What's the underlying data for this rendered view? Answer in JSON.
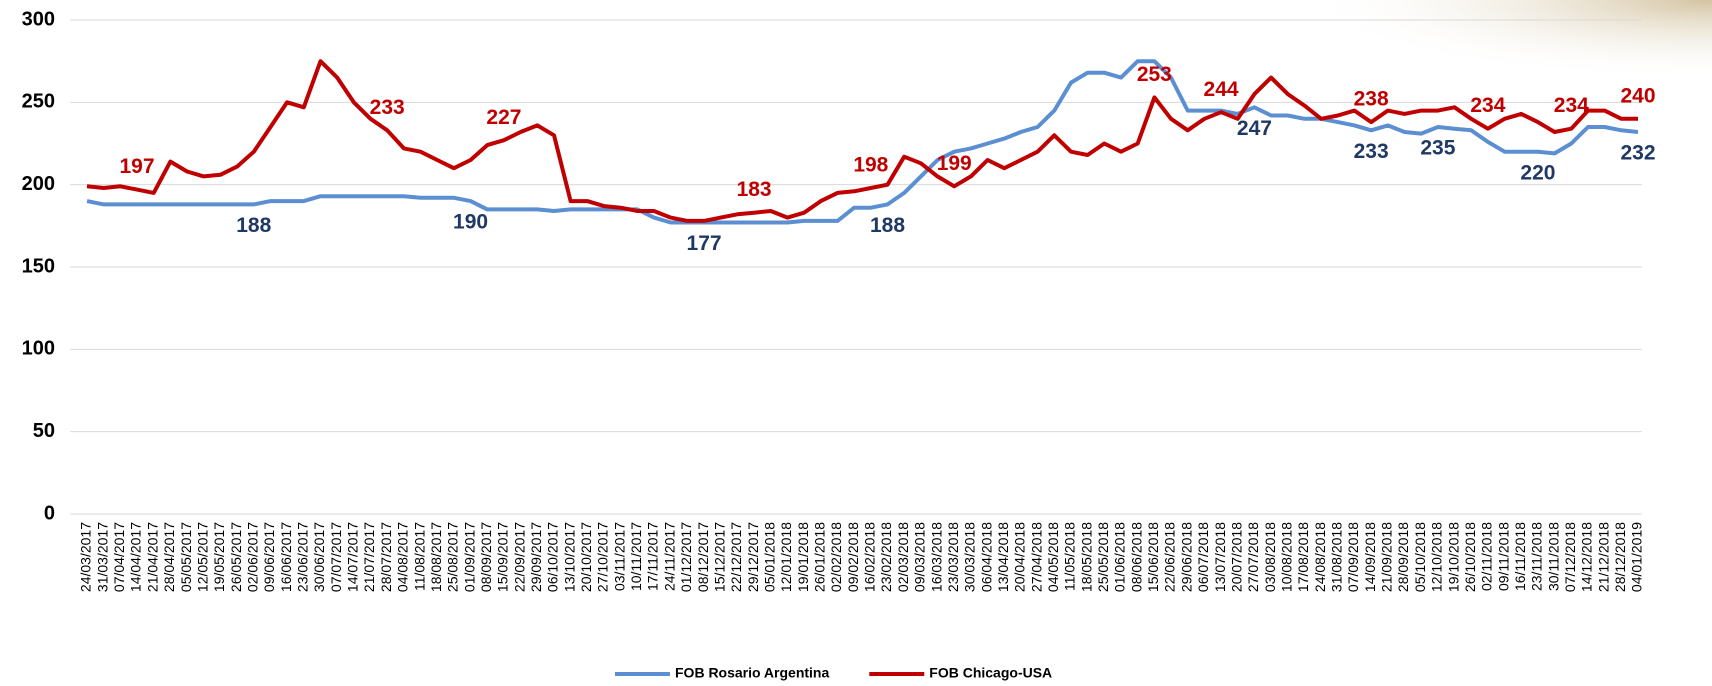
{
  "chart_data": {
    "type": "line",
    "x": [
      "24/03/2017",
      "31/03/2017",
      "07/04/2017",
      "14/04/2017",
      "21/04/2017",
      "28/04/2017",
      "05/05/2017",
      "12/05/2017",
      "19/05/2017",
      "26/05/2017",
      "02/06/2017",
      "09/06/2017",
      "16/06/2017",
      "23/06/2017",
      "30/06/2017",
      "07/07/2017",
      "14/07/2017",
      "21/07/2017",
      "28/07/2017",
      "04/08/2017",
      "11/08/2017",
      "18/08/2017",
      "25/08/2017",
      "01/09/2017",
      "08/09/2017",
      "15/09/2017",
      "22/09/2017",
      "29/09/2017",
      "06/10/2017",
      "13/10/2017",
      "20/10/2017",
      "27/10/2017",
      "03/11/2017",
      "10/11/2017",
      "17/11/2017",
      "24/11/2017",
      "01/12/2017",
      "08/12/2017",
      "15/12/2017",
      "22/12/2017",
      "29/12/2017",
      "05/01/2018",
      "12/01/2018",
      "19/01/2018",
      "26/01/2018",
      "02/02/2018",
      "09/02/2018",
      "16/02/2018",
      "23/02/2018",
      "02/03/2018",
      "09/03/2018",
      "16/03/2018",
      "23/03/2018",
      "30/03/2018",
      "06/04/2018",
      "13/04/2018",
      "20/04/2018",
      "27/04/2018",
      "04/05/2018",
      "11/05/2018",
      "18/05/2018",
      "25/05/2018",
      "01/06/2018",
      "08/06/2018",
      "15/06/2018",
      "22/06/2018",
      "29/06/2018",
      "06/07/2018",
      "13/07/2018",
      "20/07/2018",
      "27/07/2018",
      "03/08/2018",
      "10/08/2018",
      "17/08/2018",
      "24/08/2018",
      "31/08/2018",
      "07/09/2018",
      "14/09/2018",
      "21/09/2018",
      "28/09/2018",
      "05/10/2018",
      "12/10/2018",
      "19/10/2018",
      "26/10/2018",
      "02/11/2018",
      "09/11/2018",
      "16/11/2018",
      "23/11/2018",
      "30/11/2018",
      "07/12/2018",
      "14/12/2018",
      "21/12/2018",
      "28/12/2018",
      "04/01/2019"
    ],
    "series": [
      {
        "name": "FOB Rosario Argentina",
        "color": "#5b8fd1",
        "label_color": "#1f3864",
        "values": [
          190,
          188,
          188,
          188,
          188,
          188,
          188,
          188,
          188,
          188,
          188,
          190,
          190,
          190,
          193,
          193,
          193,
          193,
          193,
          193,
          192,
          192,
          192,
          190,
          185,
          185,
          185,
          185,
          184,
          185,
          185,
          185,
          185,
          185,
          180,
          177,
          177,
          177,
          177,
          177,
          177,
          177,
          177,
          178,
          178,
          178,
          186,
          186,
          188,
          195,
          205,
          215,
          220,
          222,
          225,
          228,
          232,
          235,
          245,
          262,
          268,
          268,
          265,
          275,
          275,
          265,
          245,
          245,
          245,
          243,
          247,
          242,
          242,
          240,
          240,
          238,
          236,
          233,
          236,
          232,
          231,
          235,
          234,
          233,
          226,
          220,
          220,
          220,
          219,
          225,
          235,
          235,
          233,
          232
        ],
        "value_labels": [
          null,
          null,
          null,
          null,
          null,
          null,
          null,
          null,
          null,
          null,
          "188",
          null,
          null,
          null,
          null,
          null,
          null,
          null,
          null,
          null,
          null,
          null,
          null,
          "190",
          null,
          null,
          null,
          null,
          null,
          null,
          null,
          null,
          null,
          null,
          null,
          null,
          null,
          "177",
          null,
          null,
          null,
          null,
          null,
          null,
          null,
          null,
          null,
          null,
          "188",
          null,
          null,
          null,
          null,
          null,
          null,
          null,
          null,
          null,
          null,
          null,
          null,
          null,
          null,
          null,
          null,
          null,
          null,
          null,
          null,
          null,
          "247",
          null,
          null,
          null,
          null,
          null,
          null,
          "233",
          null,
          null,
          null,
          "235",
          null,
          null,
          null,
          null,
          null,
          "220",
          null,
          null,
          null,
          null,
          null,
          "232"
        ]
      },
      {
        "name": "FOB Chicago-USA",
        "color": "#c00000",
        "label_color": "#c00000",
        "values": [
          199,
          198,
          199,
          197,
          195,
          214,
          208,
          205,
          206,
          211,
          220,
          235,
          250,
          247,
          275,
          265,
          250,
          240,
          233,
          222,
          220,
          215,
          210,
          215,
          224,
          227,
          232,
          236,
          230,
          190,
          190,
          187,
          186,
          184,
          184,
          180,
          178,
          178,
          180,
          182,
          183,
          184,
          180,
          183,
          190,
          195,
          196,
          198,
          200,
          217,
          213,
          205,
          199,
          205,
          215,
          210,
          215,
          220,
          230,
          220,
          218,
          225,
          220,
          225,
          253,
          240,
          233,
          240,
          244,
          240,
          255,
          265,
          255,
          248,
          240,
          242,
          245,
          238,
          245,
          243,
          245,
          245,
          247,
          240,
          234,
          240,
          243,
          238,
          232,
          234,
          245,
          245,
          240,
          240
        ],
        "value_labels": [
          null,
          null,
          null,
          "197",
          null,
          null,
          null,
          null,
          null,
          null,
          null,
          null,
          null,
          null,
          null,
          null,
          null,
          null,
          "233",
          null,
          null,
          null,
          null,
          null,
          null,
          "227",
          null,
          null,
          null,
          null,
          null,
          null,
          null,
          null,
          null,
          null,
          null,
          null,
          null,
          null,
          "183",
          null,
          null,
          null,
          null,
          null,
          null,
          "198",
          null,
          null,
          null,
          null,
          "199",
          null,
          null,
          null,
          null,
          null,
          null,
          null,
          null,
          null,
          null,
          null,
          "253",
          null,
          null,
          null,
          "244",
          null,
          null,
          null,
          null,
          null,
          null,
          null,
          null,
          "238",
          null,
          null,
          null,
          null,
          null,
          null,
          "234",
          null,
          null,
          null,
          null,
          "234",
          null,
          null,
          null,
          "240"
        ]
      }
    ],
    "ylim": [
      0,
      300
    ],
    "yticks": [
      0,
      50,
      100,
      150,
      200,
      250,
      300
    ],
    "grid": true,
    "legend": "bottom"
  }
}
